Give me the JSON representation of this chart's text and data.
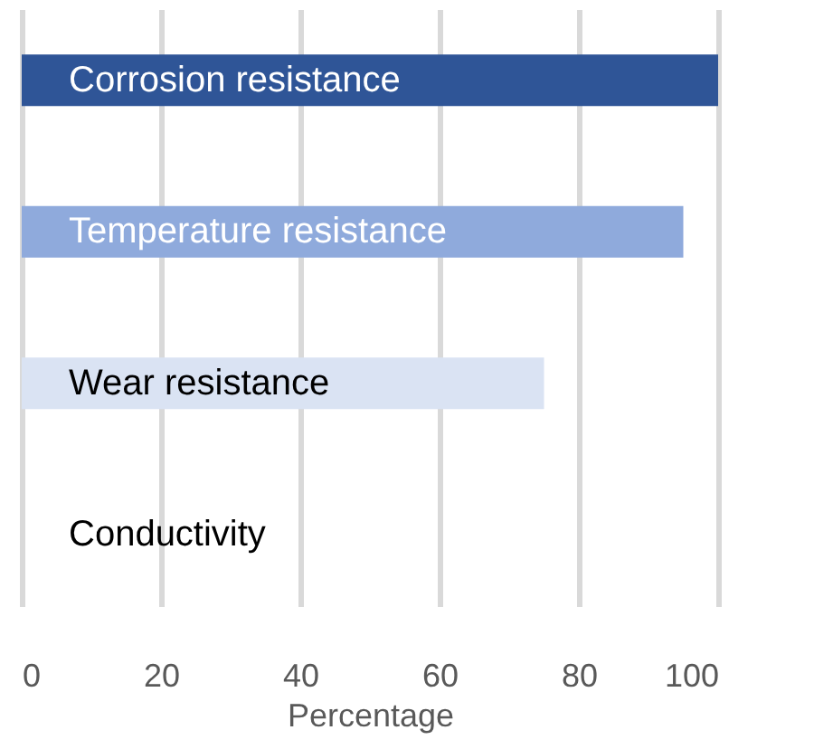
{
  "chart_data": {
    "type": "bar",
    "orientation": "horizontal",
    "xlabel": "Percentage",
    "categories": [
      "Corrosion resistance",
      "Temperature resistance",
      "Wear resistance",
      "Conductivity"
    ],
    "values": [
      100,
      95,
      75,
      0
    ],
    "colors": [
      "#2f5597",
      "#8faadc",
      "#dae3f3",
      "#ffffff"
    ],
    "xlim": [
      0,
      100
    ],
    "xticks": [
      0,
      20,
      40,
      60,
      80,
      100
    ],
    "grid": "x",
    "tick_labels": "x"
  }
}
